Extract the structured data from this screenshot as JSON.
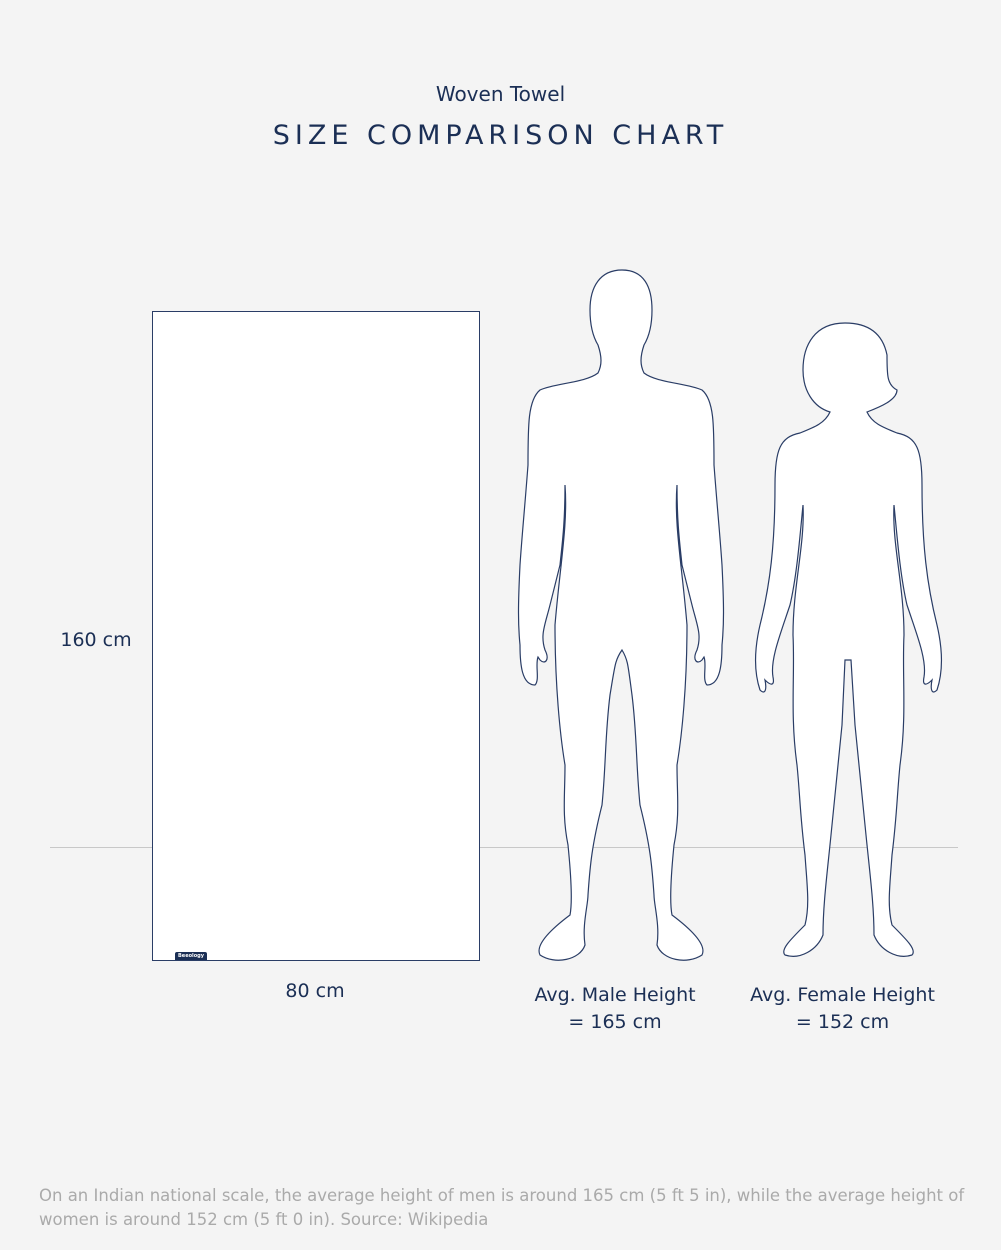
{
  "header": {
    "subtitle": "Woven Towel",
    "title": "SIZE COMPARISON CHART"
  },
  "towel": {
    "height_label": "160 cm",
    "width_label": "80 cm",
    "brand_tag": "Beeology"
  },
  "figures": {
    "male": {
      "label_line1": "Avg. Male Height",
      "label_line2": "= 165 cm"
    },
    "female": {
      "label_line1": "Avg. Female Height",
      "label_line2": "= 152 cm"
    }
  },
  "footnote": "On an Indian national scale, the average height of men is around 165 cm (5 ft 5 in), while the average height of women is around 152 cm (5 ft 0 in). Source: Wikipedia",
  "colors": {
    "primary": "#1b2f55",
    "background": "#f4f4f4",
    "footnote": "#aaaaaa"
  }
}
